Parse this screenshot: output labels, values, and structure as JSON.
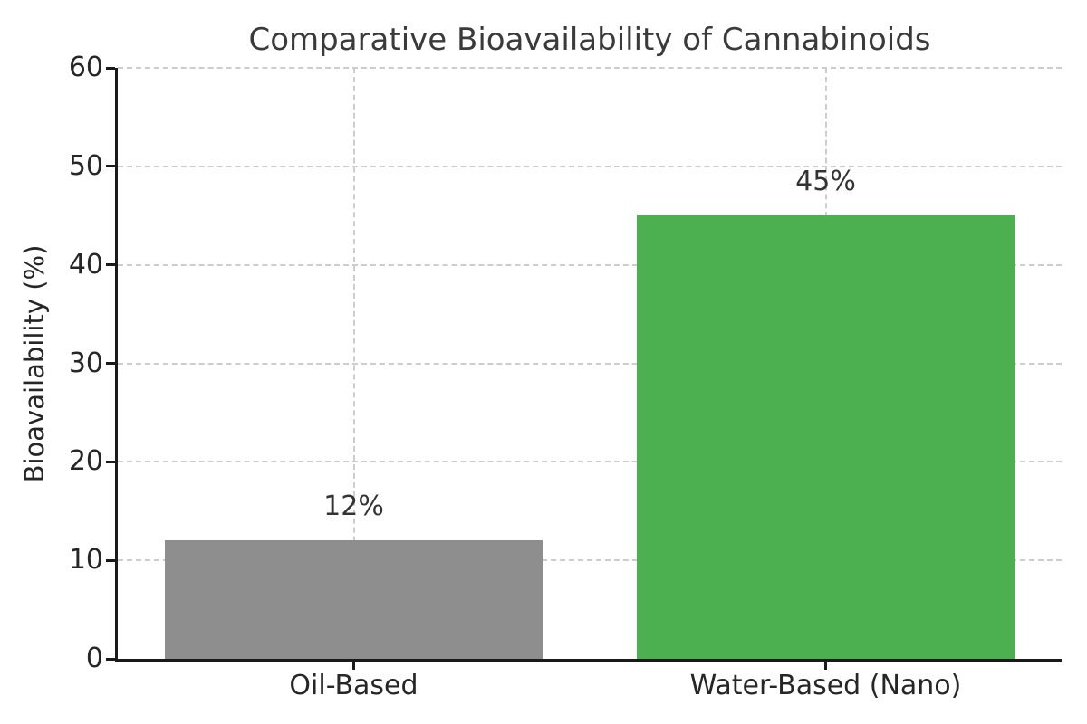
{
  "chart_data": {
    "type": "bar",
    "title": "Comparative Bioavailability of Cannabinoids",
    "xlabel": "",
    "ylabel": "Bioavailability (%)",
    "categories": [
      "Oil-Based",
      "Water-Based (Nano)"
    ],
    "values": [
      12,
      45
    ],
    "value_labels": [
      "12%",
      "45%"
    ],
    "bar_colors": [
      "#8e8e8e",
      "#4caf50"
    ],
    "ylim": [
      0,
      60
    ],
    "yticks": [
      0,
      10,
      20,
      30,
      40,
      50,
      60
    ],
    "ytick_labels": [
      "0",
      "10",
      "20",
      "30",
      "40",
      "50",
      "60"
    ],
    "bar_width_fraction": 0.8,
    "grid": {
      "style": "dashed",
      "color": "#cdcdcd",
      "horizontal": true,
      "vertical": true
    },
    "legend": "none",
    "axis_color": "#1a1a1a",
    "tick_text_color": "#262626",
    "title_color": "#3a3a3a",
    "annotation_text_color": "#333333",
    "background_color": "#ffffff"
  }
}
